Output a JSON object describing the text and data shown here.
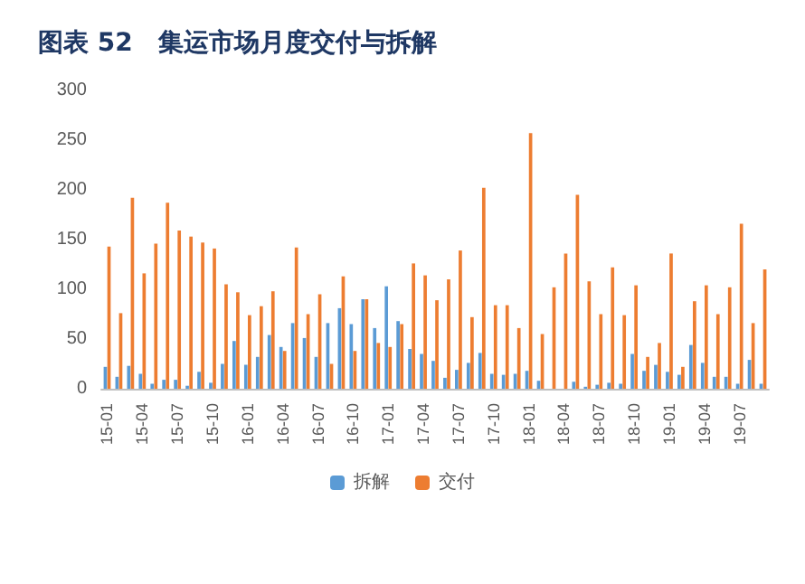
{
  "chart_data": {
    "type": "bar",
    "title": "图表 52　集运市场月度交付与拆解",
    "categories": [
      "15-01",
      null,
      null,
      "15-04",
      null,
      null,
      "15-07",
      null,
      null,
      "15-10",
      null,
      null,
      "16-01",
      null,
      null,
      "16-04",
      null,
      null,
      "16-07",
      null,
      null,
      "16-10",
      null,
      null,
      "17-01",
      null,
      null,
      "17-04",
      null,
      null,
      "17-07",
      null,
      null,
      "17-10",
      null,
      null,
      "18-01",
      null,
      null,
      "18-04",
      null,
      null,
      "18-07",
      null,
      null,
      "18-10",
      null,
      null,
      "19-01",
      null,
      null,
      "19-04",
      null,
      null,
      "19-07",
      null,
      null
    ],
    "series": [
      {
        "name": "拆解",
        "color": "#5b9bd5",
        "values": [
          22,
          12,
          23,
          15,
          5,
          9,
          9,
          3,
          17,
          6,
          25,
          48,
          24,
          32,
          54,
          42,
          66,
          51,
          32,
          66,
          81,
          65,
          90,
          61,
          103,
          68,
          40,
          35,
          28,
          11,
          19,
          26,
          36,
          15,
          14,
          15,
          18,
          8,
          0,
          0,
          7,
          2,
          4,
          6,
          5,
          35,
          18,
          24,
          17,
          14,
          44,
          26,
          12,
          12,
          5,
          29,
          5
        ]
      },
      {
        "name": "交付",
        "color": "#ed7d31",
        "values": [
          143,
          76,
          192,
          116,
          146,
          187,
          159,
          153,
          147,
          141,
          105,
          97,
          74,
          83,
          98,
          38,
          142,
          75,
          95,
          25,
          113,
          38,
          90,
          46,
          42,
          65,
          126,
          114,
          89,
          110,
          139,
          72,
          202,
          84,
          84,
          61,
          257,
          55,
          102,
          136,
          195,
          108,
          75,
          122,
          74,
          104,
          32,
          46,
          136,
          22,
          88,
          104,
          75,
          102,
          166,
          66,
          120
        ]
      }
    ],
    "ylim": [
      0,
      300
    ],
    "yticks": [
      0,
      50,
      100,
      150,
      200,
      250,
      300
    ],
    "grid": false,
    "legend": "bottom"
  }
}
